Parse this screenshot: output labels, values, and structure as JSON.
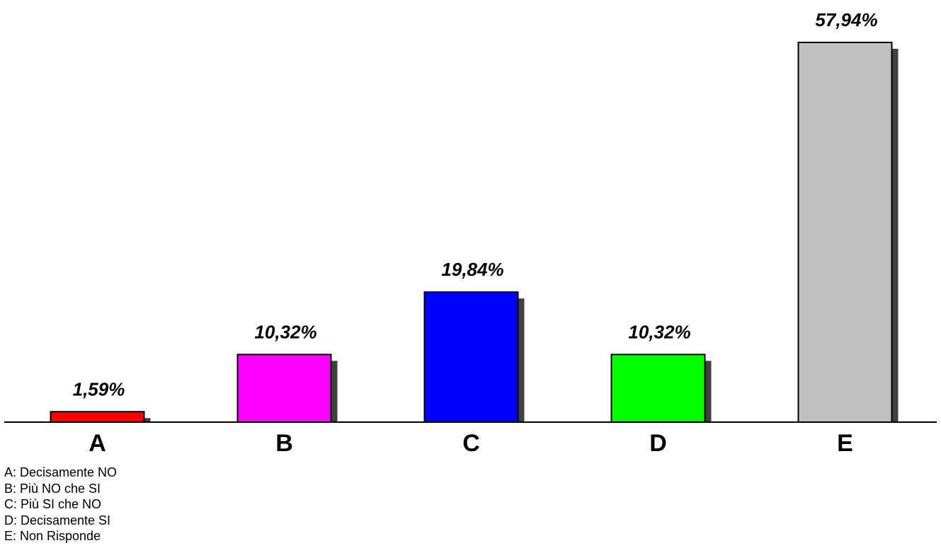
{
  "chart_data": {
    "type": "bar",
    "categories": [
      "A",
      "B",
      "C",
      "D",
      "E"
    ],
    "values": [
      1.59,
      10.32,
      19.84,
      10.32,
      57.94
    ],
    "value_labels": [
      "1,59%",
      "10,32%",
      "19,84%",
      "10,32%",
      "57,94%"
    ],
    "colors": [
      "#ff0000",
      "#ff00ff",
      "#0000ff",
      "#00ff00",
      "#c0c0c0"
    ],
    "shadow_color": "#404040",
    "ylim": [
      0,
      57.94
    ],
    "grid": false,
    "legend_placement": "bottom-left",
    "title": "",
    "xlabel": "",
    "ylabel": ""
  },
  "legend": {
    "items": [
      "A: Decisamente NO",
      "B: Più NO che SI",
      "C: Più SI che NO",
      "D: Decisamente SI",
      "E: Non Risponde"
    ]
  }
}
